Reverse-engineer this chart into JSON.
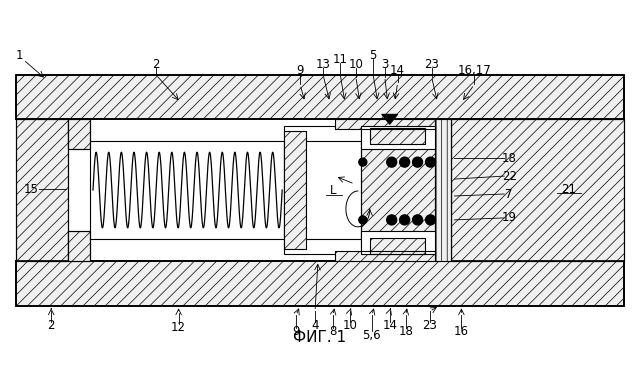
{
  "fig_width": 6.4,
  "fig_height": 3.88,
  "dpi": 100,
  "bg_color": "#ffffff",
  "caption": "ФИГ. 1",
  "caption_fontsize": 11,
  "label_fontsize": 8.5
}
